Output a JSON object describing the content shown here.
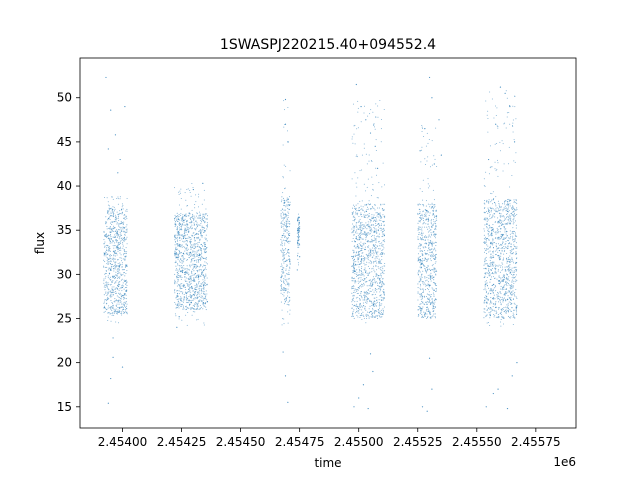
{
  "chart_data": {
    "type": "scatter",
    "title": "1SWASPJ220215.40+094552.4",
    "xlabel": "time",
    "ylabel": "flux",
    "x_offset_label": "1e6",
    "xlim": [
      2.45382,
      2.45592
    ],
    "ylim": [
      12.6,
      54.5
    ],
    "xticks": [
      2.454,
      2.45425,
      2.4545,
      2.45475,
      2.455,
      2.45525,
      2.4555,
      2.45575
    ],
    "xtick_labels": [
      "2.45400",
      "2.45425",
      "2.45450",
      "2.45475",
      "2.45500",
      "2.45525",
      "2.45550",
      "2.45575"
    ],
    "yticks": [
      15,
      20,
      25,
      30,
      35,
      40,
      45,
      50
    ],
    "ytick_labels": [
      "15",
      "20",
      "25",
      "30",
      "35",
      "40",
      "45",
      "50"
    ],
    "point_color": "#1f77b4",
    "series": [
      {
        "segments": [
          {
            "x": [
              2.45392,
              2.45402
            ],
            "core": [
              25.5,
              37.5
            ],
            "spread": [
              24.5,
              38.8
            ],
            "outliers": [
              [
                2.45393,
                52.3
              ],
              [
                2.45395,
                48.6
              ],
              [
                2.45397,
                45.8
              ],
              [
                2.45394,
                44.2
              ],
              [
                2.45401,
                49.0
              ],
              [
                2.45399,
                43.0
              ],
              [
                2.45398,
                41.5
              ],
              [
                2.45396,
                22.8
              ],
              [
                2.45395,
                18.2
              ],
              [
                2.45394,
                15.4
              ],
              [
                2.454,
                19.5
              ],
              [
                2.45396,
                20.6
              ]
            ]
          },
          {
            "x": [
              2.45422,
              2.45436
            ],
            "core": [
              26.0,
              37.0
            ],
            "spread": [
              24.0,
              40.5
            ],
            "outliers": [
              [
                2.45423,
                24.0
              ],
              [
                2.45424,
                25.2
              ],
              [
                2.45434,
                40.3
              ],
              [
                2.4543,
                39.6
              ]
            ]
          },
          {
            "x": [
              2.45467,
              2.45471
            ],
            "core": [
              26.5,
              38.8
            ],
            "spread": [
              21.5,
              49.8
            ],
            "outliers": [
              [
                2.45469,
                49.8
              ],
              [
                2.45469,
                47.0
              ],
              [
                2.4547,
                45.0
              ],
              [
                2.45468,
                21.2
              ],
              [
                2.45469,
                18.5
              ],
              [
                2.4547,
                15.5
              ]
            ]
          },
          {
            "x": [
              2.45474,
              2.45475
            ],
            "core": [
              33.0,
              36.5
            ],
            "spread": [
              30.0,
              37.0
            ],
            "outliers": [
              [
                2.45474,
                30.5
              ],
              [
                2.45475,
                32.0
              ]
            ]
          },
          {
            "x": [
              2.45497,
              2.45511
            ],
            "core": [
              25.0,
              38.0
            ],
            "spread": [
              24.5,
              50.0
            ],
            "outliers": [
              [
                2.45499,
                51.5
              ],
              [
                2.45501,
                49.0
              ],
              [
                2.45503,
                47.5
              ],
              [
                2.45505,
                46.0
              ],
              [
                2.45507,
                44.5
              ],
              [
                2.45508,
                42.0
              ],
              [
                2.45498,
                15.0
              ],
              [
                2.455,
                16.0
              ],
              [
                2.45502,
                17.5
              ],
              [
                2.45504,
                14.8
              ],
              [
                2.45506,
                19.0
              ],
              [
                2.45505,
                21.0
              ]
            ]
          },
          {
            "x": [
              2.45525,
              2.45533
            ],
            "core": [
              25.0,
              38.0
            ],
            "spread": [
              24.5,
              47.0
            ],
            "outliers": [
              [
                2.4553,
                52.3
              ],
              [
                2.45531,
                50.0
              ],
              [
                2.45528,
                46.5
              ],
              [
                2.45526,
                44.0
              ],
              [
                2.45532,
                42.5
              ],
              [
                2.45527,
                15.0
              ],
              [
                2.45529,
                14.5
              ],
              [
                2.45531,
                17.0
              ],
              [
                2.4553,
                20.5
              ],
              [
                2.45534,
                47.5
              ],
              [
                2.45535,
                43.5
              ]
            ]
          },
          {
            "x": [
              2.45553,
              2.45567
            ],
            "core": [
              25.0,
              38.5
            ],
            "spread": [
              24.0,
              51.0
            ],
            "outliers": [
              [
                2.4556,
                51.2
              ],
              [
                2.45562,
                50.5
              ],
              [
                2.45564,
                49.0
              ],
              [
                2.45558,
                47.0
              ],
              [
                2.45566,
                45.0
              ],
              [
                2.45555,
                43.0
              ],
              [
                2.45554,
                15.0
              ],
              [
                2.45557,
                16.5
              ],
              [
                2.45559,
                17.0
              ],
              [
                2.45563,
                14.8
              ],
              [
                2.45565,
                18.5
              ],
              [
                2.45567,
                20.0
              ]
            ]
          }
        ]
      }
    ]
  }
}
